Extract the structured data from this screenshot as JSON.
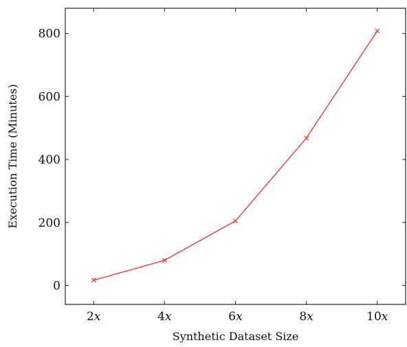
{
  "chart_data": {
    "type": "line",
    "title": "",
    "xlabel": "Synthetic Dataset Size",
    "ylabel": "Execution Time (Minutes)",
    "categories": [
      "2x",
      "4x",
      "6x",
      "8x",
      "10x"
    ],
    "x_tick_numbers": [
      "2",
      "4",
      "6",
      "8",
      "10"
    ],
    "x_tick_variable": "x",
    "x": [
      2,
      4,
      6,
      8,
      10
    ],
    "series": [
      {
        "values": [
          17,
          80,
          205,
          468,
          808
        ],
        "color": "#ff2a2a",
        "marker": "x"
      }
    ],
    "xlim": [
      1.2,
      10.8
    ],
    "ylim": [
      -60,
      880
    ],
    "y_ticks": [
      0,
      200,
      400,
      600,
      800
    ],
    "grid": false,
    "legend": "none"
  }
}
